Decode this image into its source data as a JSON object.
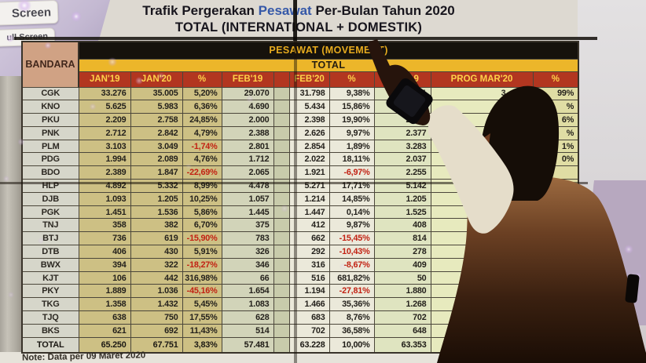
{
  "overlay_buttons": {
    "screen": "Screen",
    "full_screen": "ull Screen"
  },
  "title": {
    "line1_prefix": "Trafik Pergerakan ",
    "line1_highlight": "Pesawat",
    "line1_suffix": " Per-Bulan Tahun 2020",
    "line2": "TOTAL (INTERNATIONAL + DOMESTIK)"
  },
  "table": {
    "corner_header": "BANDARA",
    "group_header": "PESAWAT (MOVEMENT)",
    "subgroup_header": "TOTAL",
    "columns": [
      "JAN'19",
      "JAN'20",
      "%",
      "FEB'19",
      "",
      "FEB'20",
      "%",
      "MAR'19",
      "PROG MAR'20",
      "%"
    ],
    "rows": [
      {
        "bandara": "CGK",
        "values": [
          "33.276",
          "35.005",
          "5,20%",
          "29.070",
          "",
          "31.798",
          "9,38%",
          "1",
          "3     ",
          "99%"
        ]
      },
      {
        "bandara": "KNO",
        "values": [
          "5.625",
          "5.983",
          "6,36%",
          "4.690",
          "",
          "5.434",
          "15,86%",
          "",
          "",
          "%"
        ]
      },
      {
        "bandara": "PKU",
        "values": [
          "2.209",
          "2.758",
          "24,85%",
          "2.000",
          "",
          "2.398",
          "19,90%",
          "2.1  ",
          "",
          "6%"
        ]
      },
      {
        "bandara": "PNK",
        "values": [
          "2.712",
          "2.842",
          "4,79%",
          "2.388",
          "",
          "2.626",
          "9,97%",
          "2.377",
          "",
          "%"
        ]
      },
      {
        "bandara": "PLM",
        "values": [
          "3.103",
          "3.049",
          "-1,74%",
          "2.801",
          "",
          "2.854",
          "1,89%",
          "3.283",
          "",
          "1%"
        ]
      },
      {
        "bandara": "PDG",
        "values": [
          "1.994",
          "2.089",
          "4,76%",
          "1.712",
          "",
          "2.022",
          "18,11%",
          "2.037",
          "",
          "0%"
        ]
      },
      {
        "bandara": "BDO",
        "values": [
          "2.389",
          "1.847",
          "-22,69%",
          "2.065",
          "",
          "1.921",
          "-6,97%",
          "2.255",
          "",
          ""
        ]
      },
      {
        "bandara": "HLP",
        "values": [
          "4.892",
          "5.332",
          "8,99%",
          "4.478",
          "",
          "5.271",
          "17,71%",
          "5.142",
          "",
          ""
        ]
      },
      {
        "bandara": "DJB",
        "values": [
          "1.093",
          "1.205",
          "10,25%",
          "1.057",
          "",
          "1.214",
          "14,85%",
          "1.205",
          "",
          ""
        ]
      },
      {
        "bandara": "PGK",
        "values": [
          "1.451",
          "1.536",
          "5,86%",
          "1.445",
          "",
          "1.447",
          "0,14%",
          "1.525",
          "",
          ""
        ]
      },
      {
        "bandara": "TNJ",
        "values": [
          "358",
          "382",
          "6,70%",
          "375",
          "",
          "412",
          "9,87%",
          "408",
          "",
          ""
        ]
      },
      {
        "bandara": "BTJ",
        "values": [
          "736",
          "619",
          "-15,90%",
          "783",
          "",
          "662",
          "-15,45%",
          "814",
          "",
          ""
        ]
      },
      {
        "bandara": "DTB",
        "values": [
          "406",
          "430",
          "5,91%",
          "326",
          "",
          "292",
          "-10,43%",
          "278",
          "",
          ""
        ]
      },
      {
        "bandara": "BWX",
        "values": [
          "394",
          "322",
          "-18,27%",
          "346",
          "",
          "316",
          "-8,67%",
          "409",
          "",
          ""
        ]
      },
      {
        "bandara": "KJT",
        "values": [
          "106",
          "442",
          "316,98%",
          "66",
          "",
          "516",
          "681,82%",
          "50",
          "",
          ""
        ]
      },
      {
        "bandara": "PKY",
        "values": [
          "1.889",
          "1.036",
          "-45,16%",
          "1.654",
          "",
          "1.194",
          "-27,81%",
          "1.880",
          "",
          ""
        ]
      },
      {
        "bandara": "TKG",
        "values": [
          "1.358",
          "1.432",
          "5,45%",
          "1.083",
          "",
          "1.466",
          "35,36%",
          "1.268",
          "",
          ""
        ]
      },
      {
        "bandara": "TJQ",
        "values": [
          "638",
          "750",
          "17,55%",
          "628",
          "",
          "683",
          "8,76%",
          "702",
          "",
          ""
        ]
      },
      {
        "bandara": "BKS",
        "values": [
          "621",
          "692",
          "11,43%",
          "514",
          "",
          "702",
          "36,58%",
          "648",
          "",
          ""
        ]
      }
    ],
    "total_row": {
      "bandara": "TOTAL",
      "values": [
        "65.250",
        "67.751",
        "3,83%",
        "57.481",
        "",
        "63.228",
        "10,00%",
        "63.353",
        "",
        ""
      ]
    }
  },
  "note": "Note: Data per 09 Maret 2020",
  "colors": {
    "header_red": "#b23620",
    "header_text_yellow": "#ffd24a",
    "band_yellow": "#ecb62a",
    "band_black": "#16120c",
    "corner_tan": "#d0a284",
    "negative_red": "#c22113",
    "title_highlight_blue": "#3558a8"
  }
}
